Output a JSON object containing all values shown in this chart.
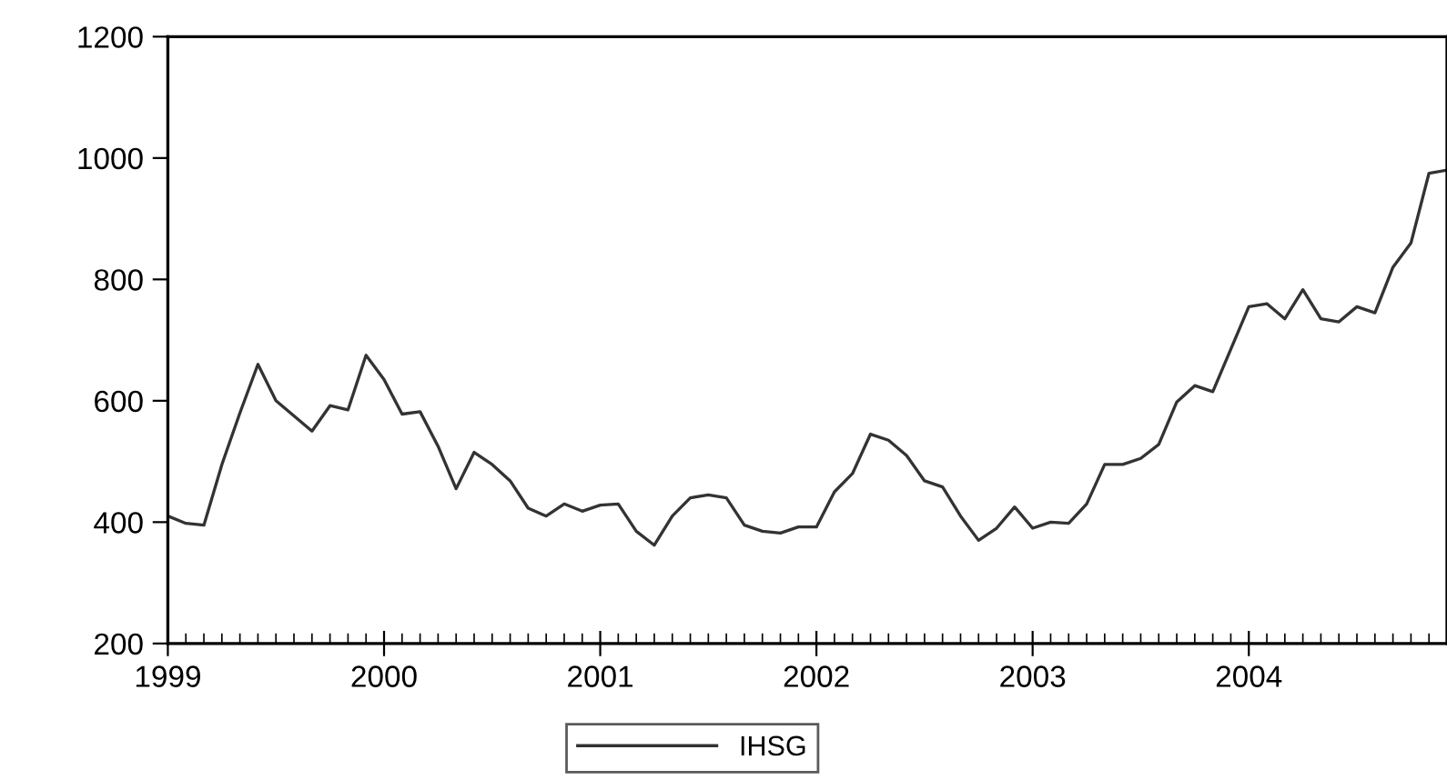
{
  "chart_data": {
    "type": "line",
    "x": [
      "1999-01",
      "1999-02",
      "1999-03",
      "1999-04",
      "1999-05",
      "1999-06",
      "1999-07",
      "1999-08",
      "1999-09",
      "1999-10",
      "1999-11",
      "1999-12",
      "2000-01",
      "2000-02",
      "2000-03",
      "2000-04",
      "2000-05",
      "2000-06",
      "2000-07",
      "2000-08",
      "2000-09",
      "2000-10",
      "2000-11",
      "2000-12",
      "2001-01",
      "2001-02",
      "2001-03",
      "2001-04",
      "2001-05",
      "2001-06",
      "2001-07",
      "2001-08",
      "2001-09",
      "2001-10",
      "2001-11",
      "2001-12",
      "2002-01",
      "2002-02",
      "2002-03",
      "2002-04",
      "2002-05",
      "2002-06",
      "2002-07",
      "2002-08",
      "2002-09",
      "2002-10",
      "2002-11",
      "2002-12",
      "2003-01",
      "2003-02",
      "2003-03",
      "2003-04",
      "2003-05",
      "2003-06",
      "2003-07",
      "2003-08",
      "2003-09",
      "2003-10",
      "2003-11",
      "2003-12",
      "2004-01",
      "2004-02",
      "2004-03",
      "2004-04",
      "2004-05",
      "2004-06",
      "2004-07",
      "2004-08",
      "2004-09",
      "2004-10",
      "2004-11",
      "2004-12"
    ],
    "series": [
      {
        "name": "IHSG",
        "color": "#333333",
        "values": [
          410,
          398,
          395,
          495,
          580,
          660,
          600,
          575,
          550,
          592,
          585,
          675,
          635,
          578,
          582,
          525,
          455,
          515,
          495,
          468,
          423,
          410,
          430,
          418,
          428,
          430,
          385,
          362,
          410,
          440,
          445,
          440,
          395,
          385,
          382,
          392,
          392,
          450,
          480,
          545,
          535,
          510,
          468,
          458,
          410,
          370,
          390,
          425,
          390,
          400,
          398,
          430,
          495,
          495,
          505,
          528,
          598,
          625,
          615,
          685,
          755,
          760,
          735,
          783,
          735,
          730,
          755,
          745,
          820,
          860,
          975,
          980
        ]
      }
    ],
    "xlim": [
      "1999-01",
      "2004-12"
    ],
    "xticks": [
      {
        "value": "1999-01",
        "label": "1999"
      },
      {
        "value": "2000-01",
        "label": "2000"
      },
      {
        "value": "2001-01",
        "label": "2001"
      },
      {
        "value": "2002-01",
        "label": "2002"
      },
      {
        "value": "2003-01",
        "label": "2003"
      },
      {
        "value": "2004-01",
        "label": "2004"
      }
    ],
    "ylim": [
      200,
      1200
    ],
    "yticks": [
      200,
      400,
      600,
      800,
      1000,
      1200
    ],
    "grid": false,
    "legend": "bottom",
    "line_style": "solid",
    "marker": "none"
  }
}
